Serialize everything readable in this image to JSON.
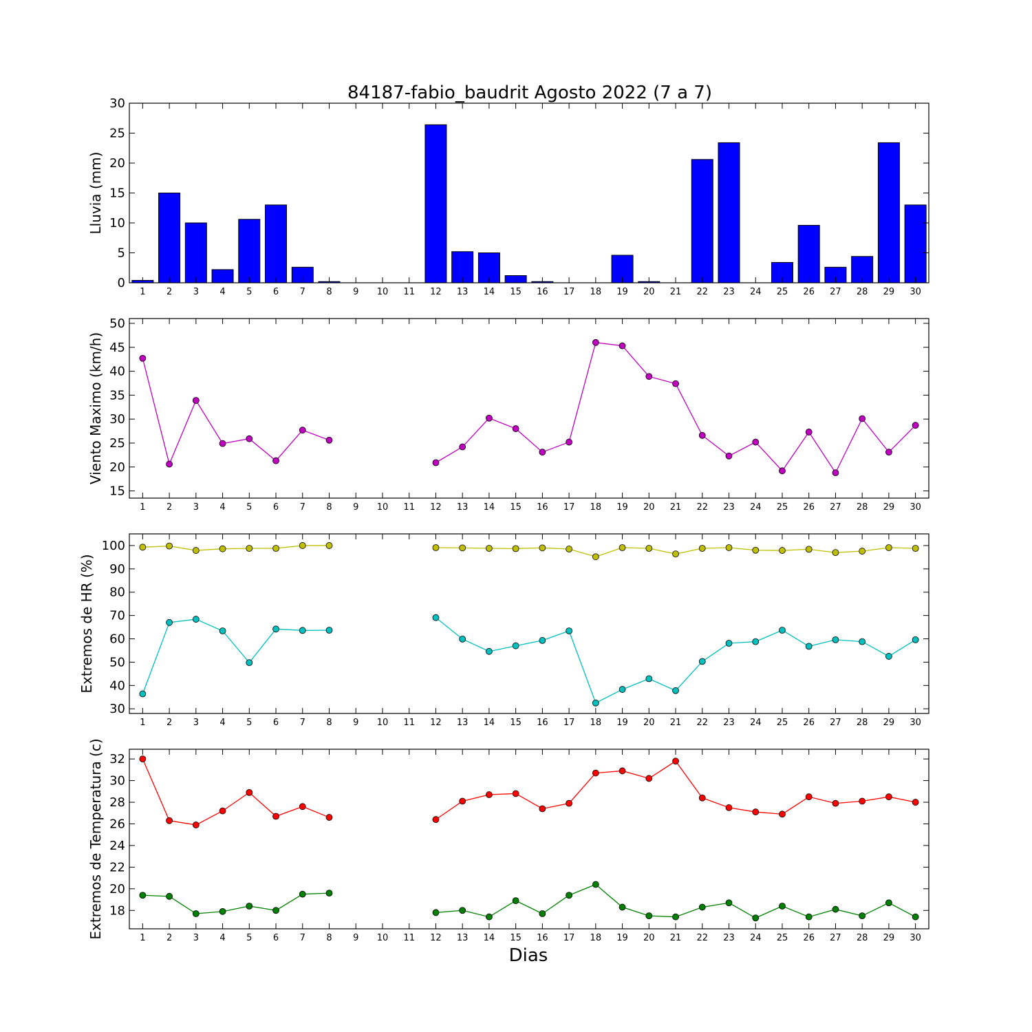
{
  "title": "84187-fabio_baudrit Agosto 2022  (7 a 7)",
  "xlabel": "Dias",
  "chart_data": [
    {
      "type": "bar",
      "ylabel": "Lluvia (mm)",
      "ylim": [
        0,
        30
      ],
      "yticks": [
        0,
        5,
        10,
        15,
        20,
        25,
        30
      ],
      "categories": [
        1,
        2,
        3,
        4,
        5,
        6,
        7,
        8,
        9,
        10,
        11,
        12,
        13,
        14,
        15,
        16,
        17,
        18,
        19,
        20,
        21,
        22,
        23,
        24,
        25,
        26,
        27,
        28,
        29,
        30
      ],
      "series": [
        {
          "color": "#0000ff",
          "values": [
            0.4,
            15.0,
            10.0,
            2.2,
            10.6,
            13.0,
            2.6,
            0.2,
            0,
            0,
            0,
            26.4,
            5.2,
            5.0,
            1.2,
            0.2,
            0,
            0,
            4.6,
            0.2,
            0,
            20.6,
            23.4,
            0,
            3.4,
            9.6,
            2.6,
            4.4,
            23.4,
            13.0
          ]
        }
      ]
    },
    {
      "type": "line",
      "ylabel": "Viento Maximo (km/h)",
      "ylim": [
        13.5,
        51
      ],
      "yticks": [
        15,
        20,
        25,
        30,
        35,
        40,
        45,
        50
      ],
      "categories": [
        1,
        2,
        3,
        4,
        5,
        6,
        7,
        8,
        9,
        10,
        11,
        12,
        13,
        14,
        15,
        16,
        17,
        18,
        19,
        20,
        21,
        22,
        23,
        24,
        25,
        26,
        27,
        28,
        29,
        30
      ],
      "series": [
        {
          "color": "#bf00bf",
          "values": [
            42.7,
            20.6,
            33.9,
            24.9,
            25.9,
            21.3,
            27.7,
            25.6,
            null,
            null,
            null,
            20.9,
            24.2,
            30.2,
            28.0,
            23.1,
            25.2,
            46.0,
            45.3,
            38.9,
            37.4,
            26.6,
            22.3,
            25.2,
            19.2,
            27.3,
            18.8,
            30.1,
            23.1,
            28.7
          ]
        }
      ]
    },
    {
      "type": "line",
      "ylabel": "Extremos de HR (%)",
      "ylim": [
        28,
        105
      ],
      "yticks": [
        30,
        40,
        50,
        60,
        70,
        80,
        90,
        100
      ],
      "categories": [
        1,
        2,
        3,
        4,
        5,
        6,
        7,
        8,
        9,
        10,
        11,
        12,
        13,
        14,
        15,
        16,
        17,
        18,
        19,
        20,
        21,
        22,
        23,
        24,
        25,
        26,
        27,
        28,
        29,
        30
      ],
      "series": [
        {
          "color": "#bfbf00",
          "values": [
            99.3,
            99.8,
            97.9,
            98.6,
            98.8,
            98.8,
            100.0,
            100.0,
            null,
            null,
            null,
            99.1,
            99.0,
            98.8,
            98.7,
            99.0,
            98.5,
            95.2,
            99.1,
            98.8,
            96.4,
            98.8,
            99.1,
            98.0,
            97.9,
            98.4,
            97.0,
            97.6,
            99.1,
            98.8
          ]
        },
        {
          "color": "#00bfbf",
          "values": [
            36.4,
            67.0,
            68.4,
            63.4,
            49.8,
            64.2,
            63.6,
            63.7,
            null,
            null,
            null,
            69.1,
            59.9,
            54.6,
            57.0,
            59.3,
            63.4,
            32.5,
            38.3,
            42.9,
            37.8,
            50.3,
            58.1,
            58.8,
            63.7,
            56.8,
            59.6,
            58.8,
            52.5,
            59.6
          ]
        }
      ]
    },
    {
      "type": "line",
      "ylabel": "Extremos de Temperatura (c)",
      "ylim": [
        16.3,
        32.9
      ],
      "yticks": [
        18,
        20,
        22,
        24,
        26,
        28,
        30,
        32
      ],
      "categories": [
        1,
        2,
        3,
        4,
        5,
        6,
        7,
        8,
        9,
        10,
        11,
        12,
        13,
        14,
        15,
        16,
        17,
        18,
        19,
        20,
        21,
        22,
        23,
        24,
        25,
        26,
        27,
        28,
        29,
        30
      ],
      "series": [
        {
          "color": "#ff0000",
          "values": [
            32.0,
            26.3,
            25.9,
            27.2,
            28.9,
            26.7,
            27.6,
            26.6,
            null,
            null,
            null,
            26.4,
            28.1,
            28.7,
            28.8,
            27.4,
            27.9,
            30.7,
            30.9,
            30.2,
            31.8,
            28.4,
            27.5,
            27.1,
            26.9,
            28.5,
            27.9,
            28.1,
            28.5,
            28.0
          ]
        },
        {
          "color": "#008000",
          "values": [
            19.4,
            19.3,
            17.7,
            17.9,
            18.4,
            18.0,
            19.5,
            19.6,
            null,
            null,
            null,
            17.8,
            18.0,
            17.4,
            18.9,
            17.7,
            19.4,
            20.4,
            18.3,
            17.5,
            17.4,
            18.3,
            18.7,
            17.3,
            18.4,
            17.4,
            18.1,
            17.5,
            18.7,
            17.4
          ]
        }
      ]
    }
  ]
}
